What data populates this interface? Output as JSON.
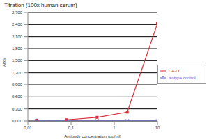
{
  "chart_data": {
    "type": "line",
    "title": "Titration (100x human serum)",
    "x_label": "Antibody concentration (µg/ml)",
    "y_label": "ABS",
    "log": "x",
    "grid": true,
    "legend": "right",
    "x": [
      0.016,
      0.08,
      0.4,
      2,
      10
    ],
    "series": [
      {
        "name": "CA-IX",
        "color": "#d9303a",
        "marker": "square",
        "values": [
          0.02,
          0.03,
          0.09,
          0.22,
          2.43
        ]
      },
      {
        "name": "isotype control",
        "color": "#5b5bd6",
        "marker": "cross",
        "values": [
          0.01,
          0.01,
          0.01,
          0.01,
          0.01
        ]
      }
    ],
    "xlim": [
      0.01,
      10
    ],
    "xticks": [
      {
        "value": 0.01,
        "label": "0,01"
      },
      {
        "value": 0.1,
        "label": "0,1"
      },
      1,
      10
    ],
    "ylim": [
      0,
      2.7
    ],
    "yticks": [
      {
        "value": 0,
        "label": "0,000"
      },
      {
        "value": 0.3,
        "label": "0,300"
      },
      {
        "value": 0.6,
        "label": "0,600"
      },
      {
        "value": 0.9,
        "label": "0,900"
      },
      {
        "value": 1.2,
        "label": "1,200"
      },
      {
        "value": 1.5,
        "label": "1,500"
      },
      {
        "value": 1.8,
        "label": "1,800"
      },
      {
        "value": 2.1,
        "label": "2,100"
      },
      {
        "value": 2.4,
        "label": "2,400"
      },
      {
        "value": 2.7,
        "label": "2,700"
      }
    ]
  }
}
